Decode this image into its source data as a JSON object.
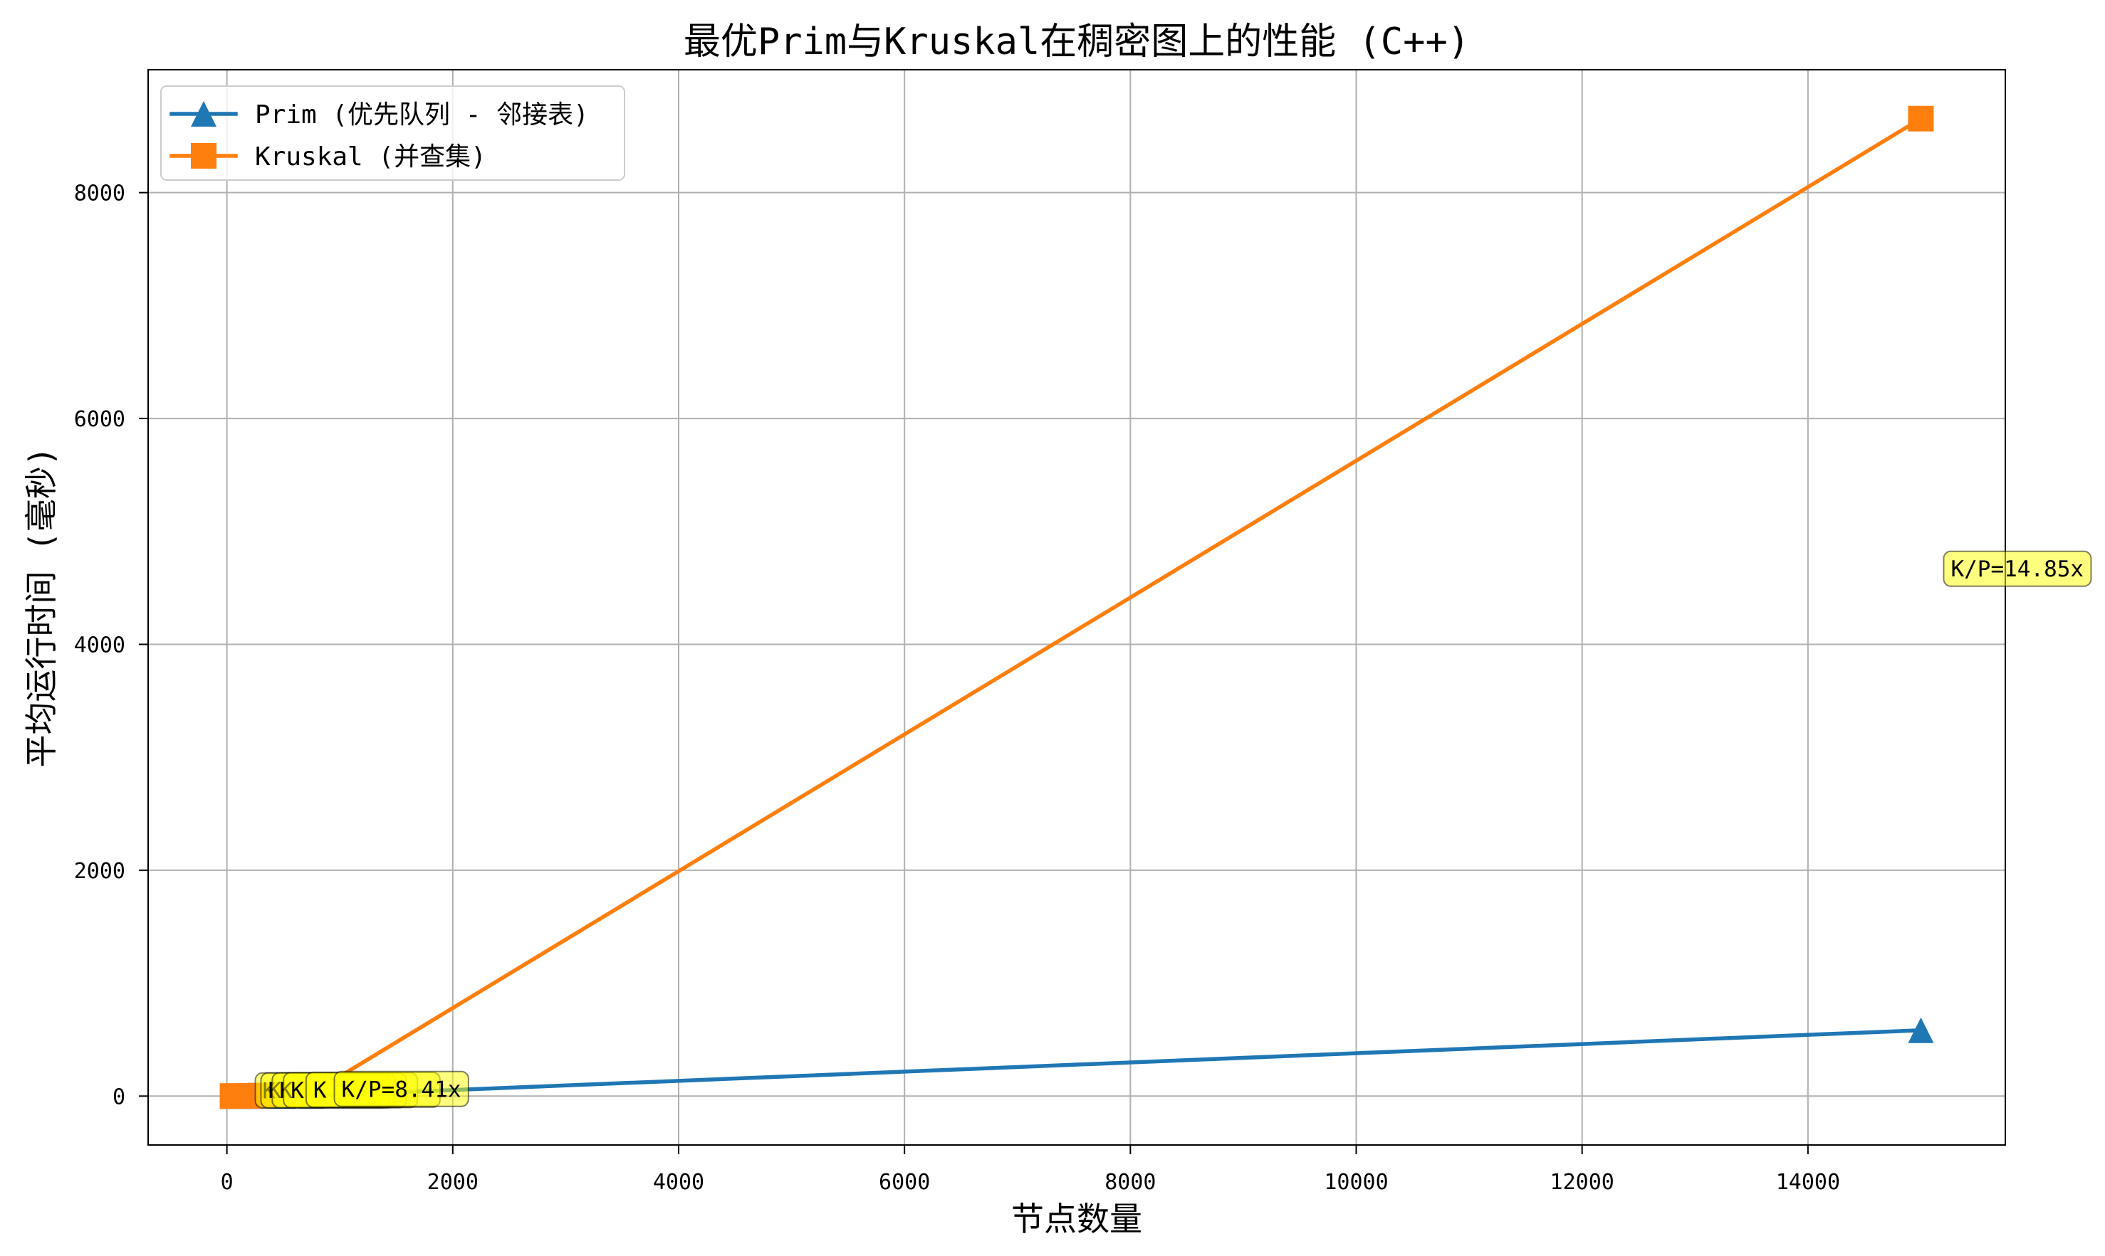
{
  "chart_data": {
    "type": "line",
    "title": "最优Prim与Kruskal在稠密图上的性能 (C++)",
    "xlabel": "节点数量",
    "ylabel": "平均运行时间 (毫秒)",
    "x": [
      50,
      100,
      200,
      300,
      500,
      750,
      15000
    ],
    "series": [
      {
        "name": "Prim (优先队列 - 邻接表)",
        "color": "#1f77b4",
        "marker": "triangle-up",
        "values": [
          0.1,
          0.2,
          0.4,
          0.6,
          1.2,
          2.7,
          583
        ]
      },
      {
        "name": "Kruskal (并查集)",
        "color": "#ff7f0e",
        "marker": "square",
        "values": [
          0.3,
          0.8,
          2.1,
          4.1,
          9.5,
          22.7,
          8655
        ]
      }
    ],
    "xlim": [
      -697.5,
      15747.5
    ],
    "ylim": [
      -433,
      9088
    ],
    "xticks": [
      0,
      2000,
      4000,
      6000,
      8000,
      10000,
      12000,
      14000
    ],
    "xtick_labels": [
      "0",
      "2000",
      "4000",
      "6000",
      "8000",
      "10000",
      "12000",
      "14000"
    ],
    "yticks": [
      0,
      2000,
      4000,
      6000,
      8000
    ],
    "ytick_labels": [
      "0",
      "2000",
      "4000",
      "6000",
      "8000"
    ],
    "grid": true,
    "legend_position": "upper-left",
    "annotation_color": "#ffff00",
    "annotations": [
      {
        "x": 50,
        "text": "K"
      },
      {
        "x": 100,
        "text": "K"
      },
      {
        "x": 200,
        "text": "K"
      },
      {
        "x": 300,
        "text": "K"
      },
      {
        "x": 500,
        "text": "K"
      },
      {
        "x": 750,
        "text": "K/P=8.41x"
      },
      {
        "x": 15000,
        "text": "K/P=14.85x"
      }
    ]
  }
}
